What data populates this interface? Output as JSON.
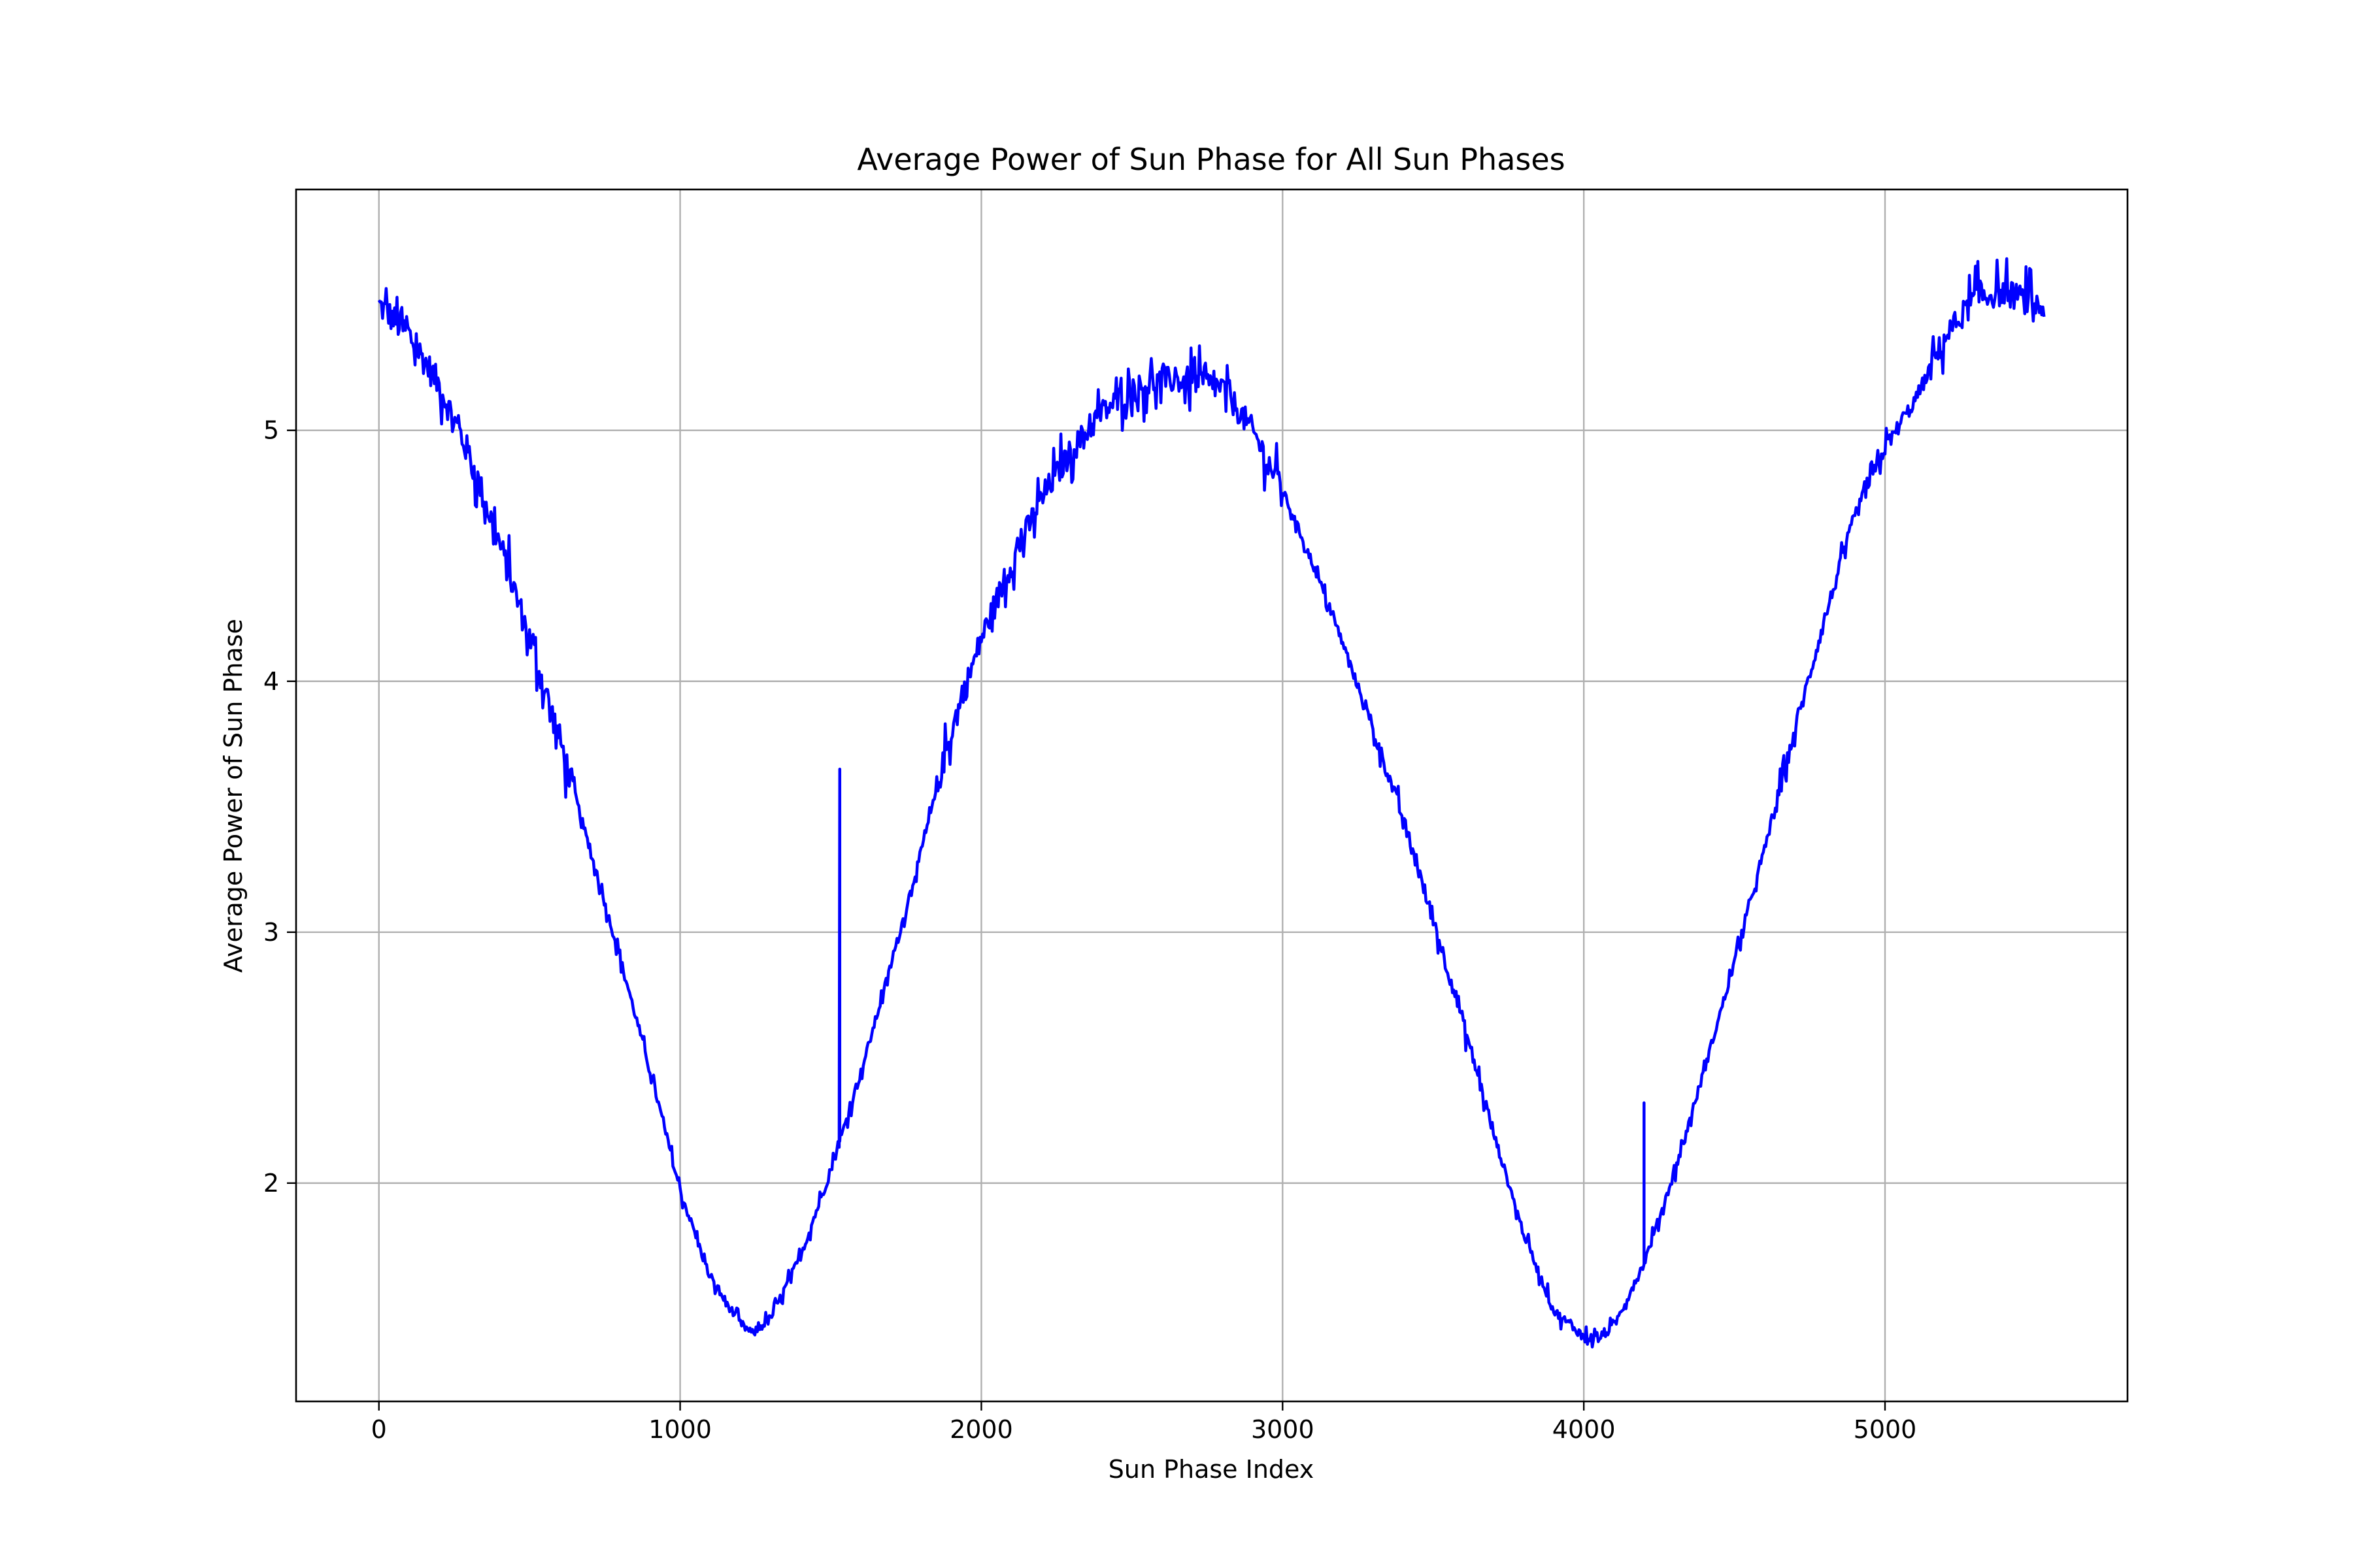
{
  "chart_data": {
    "type": "line",
    "title": "Average Power of Sun Phase for All Sun Phases",
    "xlabel": "Sun Phase Index",
    "ylabel": "Average Power of Sun Phase",
    "xlim": [
      -275,
      5805
    ],
    "ylim": [
      1.13,
      5.96
    ],
    "xticks": [
      0,
      1000,
      2000,
      3000,
      4000,
      5000
    ],
    "xtick_labels": [
      "0",
      "1000",
      "2000",
      "3000",
      "4000",
      "5000"
    ],
    "yticks": [
      2,
      3,
      4,
      5
    ],
    "ytick_labels": [
      "2",
      "3",
      "4",
      "5"
    ],
    "grid": true,
    "legend": "none",
    "series": [
      {
        "color": "#0000ff",
        "x": [
          0,
          100,
          200,
          300,
          400,
          500,
          600,
          700,
          800,
          900,
          1000,
          1100,
          1200,
          1240,
          1300,
          1400,
          1500,
          1600,
          1700,
          1800,
          1900,
          2000,
          2100,
          2200,
          2300,
          2400,
          2500,
          2600,
          2700,
          2800,
          2900,
          3000,
          3100,
          3200,
          3300,
          3400,
          3500,
          3600,
          3700,
          3800,
          3900,
          4000,
          4050,
          4100,
          4200,
          4300,
          4400,
          4500,
          4600,
          4700,
          4800,
          4900,
          5000,
          5100,
          5200,
          5300,
          5400,
          5500,
          5530
        ],
        "y": [
          5.5,
          5.38,
          5.18,
          4.9,
          4.55,
          4.17,
          3.77,
          3.33,
          2.9,
          2.45,
          1.97,
          1.62,
          1.44,
          1.4,
          1.46,
          1.71,
          2.05,
          2.44,
          2.87,
          3.32,
          3.8,
          4.17,
          4.47,
          4.73,
          4.92,
          5.07,
          5.16,
          5.2,
          5.2,
          5.17,
          5.0,
          4.76,
          4.47,
          4.15,
          3.81,
          3.45,
          3.05,
          2.64,
          2.2,
          1.8,
          1.49,
          1.39,
          1.38,
          1.43,
          1.68,
          2.04,
          2.45,
          2.88,
          3.33,
          3.8,
          4.25,
          4.66,
          4.93,
          5.12,
          5.37,
          5.53,
          5.55,
          5.5,
          5.48
        ],
        "spikes": [
          {
            "x": 1530,
            "y": 3.65
          },
          {
            "x": 4200,
            "y": 2.32
          }
        ]
      }
    ]
  }
}
